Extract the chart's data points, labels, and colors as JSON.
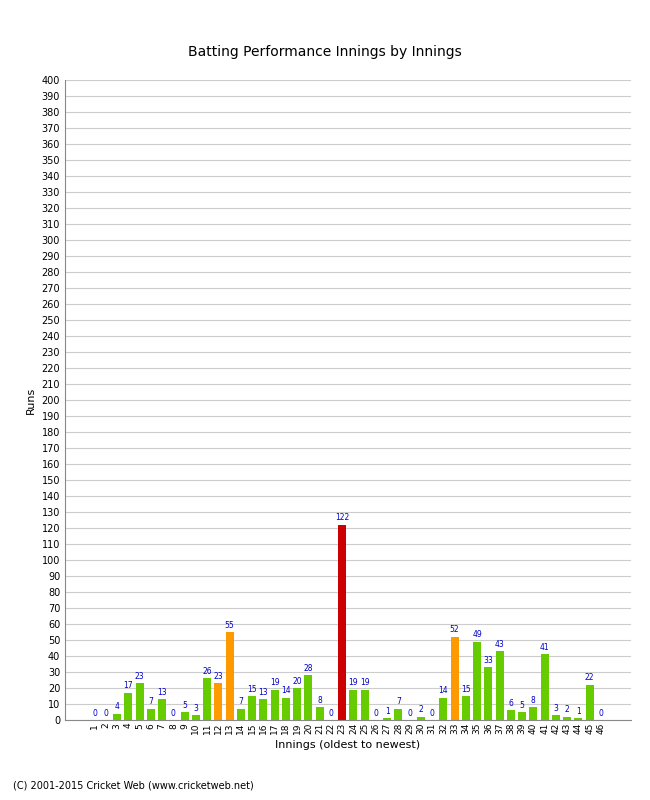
{
  "innings": [
    1,
    2,
    3,
    4,
    5,
    6,
    7,
    8,
    9,
    10,
    11,
    12,
    13,
    14,
    15,
    16,
    17,
    18,
    19,
    20,
    21,
    22,
    23,
    24,
    25,
    26,
    27,
    28,
    29,
    30,
    31,
    32,
    33,
    34,
    35,
    36,
    37,
    38,
    39,
    40,
    41,
    42,
    43,
    44,
    45,
    46
  ],
  "scores": [
    0,
    0,
    4,
    17,
    23,
    7,
    13,
    0,
    5,
    3,
    26,
    23,
    55,
    7,
    15,
    13,
    19,
    14,
    20,
    28,
    8,
    0,
    122,
    19,
    19,
    0,
    1,
    7,
    0,
    2,
    0,
    14,
    52,
    15,
    49,
    33,
    43,
    6,
    5,
    8,
    41,
    3,
    2,
    1,
    22,
    0
  ],
  "colors": [
    "green",
    "green",
    "green",
    "green",
    "green",
    "green",
    "green",
    "green",
    "green",
    "green",
    "green",
    "orange",
    "orange",
    "green",
    "green",
    "green",
    "green",
    "green",
    "green",
    "green",
    "green",
    "green",
    "red",
    "green",
    "green",
    "green",
    "green",
    "green",
    "green",
    "green",
    "green",
    "green",
    "orange",
    "green",
    "green",
    "green",
    "green",
    "green",
    "green",
    "green",
    "green",
    "green",
    "green",
    "green",
    "green",
    "green"
  ],
  "title": "Batting Performance Innings by Innings",
  "xlabel": "Innings (oldest to newest)",
  "ylabel": "Runs",
  "ylim": [
    0,
    400
  ],
  "yticks": [
    0,
    10,
    20,
    30,
    40,
    50,
    60,
    70,
    80,
    90,
    100,
    110,
    120,
    130,
    140,
    150,
    160,
    170,
    180,
    190,
    200,
    210,
    220,
    230,
    240,
    250,
    260,
    270,
    280,
    290,
    300,
    310,
    320,
    330,
    340,
    350,
    360,
    370,
    380,
    390,
    400
  ],
  "bg_color": "#ffffff",
  "bar_green": "#66cc00",
  "bar_orange": "#ff9900",
  "bar_red": "#cc0000",
  "label_color": "#0000cc",
  "grid_color": "#cccccc",
  "footer": "(C) 2001-2015 Cricket Web (www.cricketweb.net)"
}
